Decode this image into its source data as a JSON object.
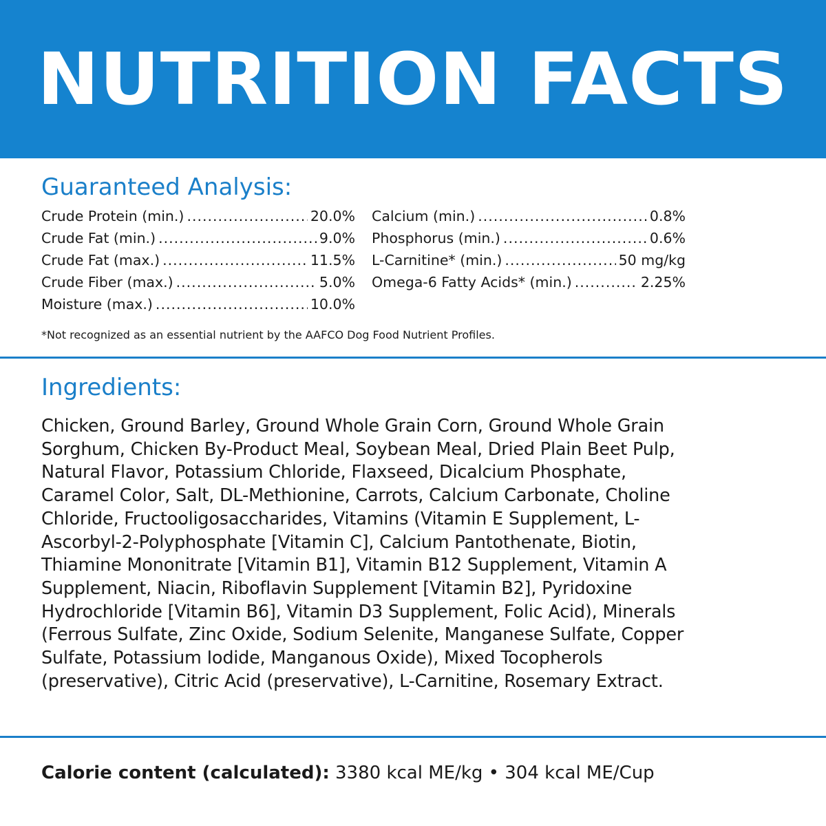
{
  "banner": {
    "title": "NUTRITION FACTS",
    "color": "#1583cf"
  },
  "guaranteed_analysis": {
    "heading": "Guaranteed Analysis:",
    "left": [
      {
        "label": "Crude Protein (min.)",
        "value": "20.0%"
      },
      {
        "label": "Crude Fat (min.)",
        "value": "9.0%"
      },
      {
        "label": "Crude Fat (max.)",
        "value": "11.5%"
      },
      {
        "label": "Crude Fiber (max.)",
        "value": "5.0%"
      },
      {
        "label": "Moisture (max.)",
        "value": "10.0%"
      }
    ],
    "right": [
      {
        "label": "Calcium (min.)",
        "value": "0.8%"
      },
      {
        "label": "Phosphorus (min.)",
        "value": "0.6%"
      },
      {
        "label": "L-Carnitine* (min.)",
        "value": "50 mg/kg"
      },
      {
        "label": "Omega-6 Fatty Acids* (min.)",
        "value": "2.25%"
      }
    ],
    "footnote": "*Not recognized as an essential nutrient by the AAFCO Dog Food Nutrient Profiles."
  },
  "ingredients": {
    "heading": "Ingredients:",
    "text": "Chicken, Ground Barley, Ground Whole Grain Corn, Ground Whole Grain Sorghum, Chicken By-Product Meal, Soybean Meal, Dried Plain Beet Pulp, Natural Flavor, Potassium Chloride, Flaxseed, Dicalcium Phosphate, Caramel Color, Salt, DL-Methionine, Carrots, Calcium Carbonate, Choline Chloride, Fructooligosaccharides, Vitamins (Vitamin E Supplement, L-Ascorbyl-2-Polyphosphate [Vitamin C], Calcium Pantothenate, Biotin, Thiamine Mononitrate [Vitamin B1], Vitamin B12 Supplement, Vitamin A Supplement, Niacin, Riboflavin Supplement [Vitamin B2], Pyridoxine Hydrochloride [Vitamin B6], Vitamin D3 Supplement, Folic Acid), Minerals (Ferrous Sulfate, Zinc Oxide, Sodium Selenite, Manganese Sulfate, Copper Sulfate, Potassium Iodide, Manganous Oxide), Mixed Tocopherols (preservative), Citric Acid (preservative), L-Carnitine, Rosemary Extract."
  },
  "calorie": {
    "label": "Calorie content (calculated):",
    "value": "3380 kcal ME/kg • 304 kcal ME/Cup"
  },
  "colors": {
    "accent": "#1a7fc9",
    "text": "#1a1a1a"
  }
}
